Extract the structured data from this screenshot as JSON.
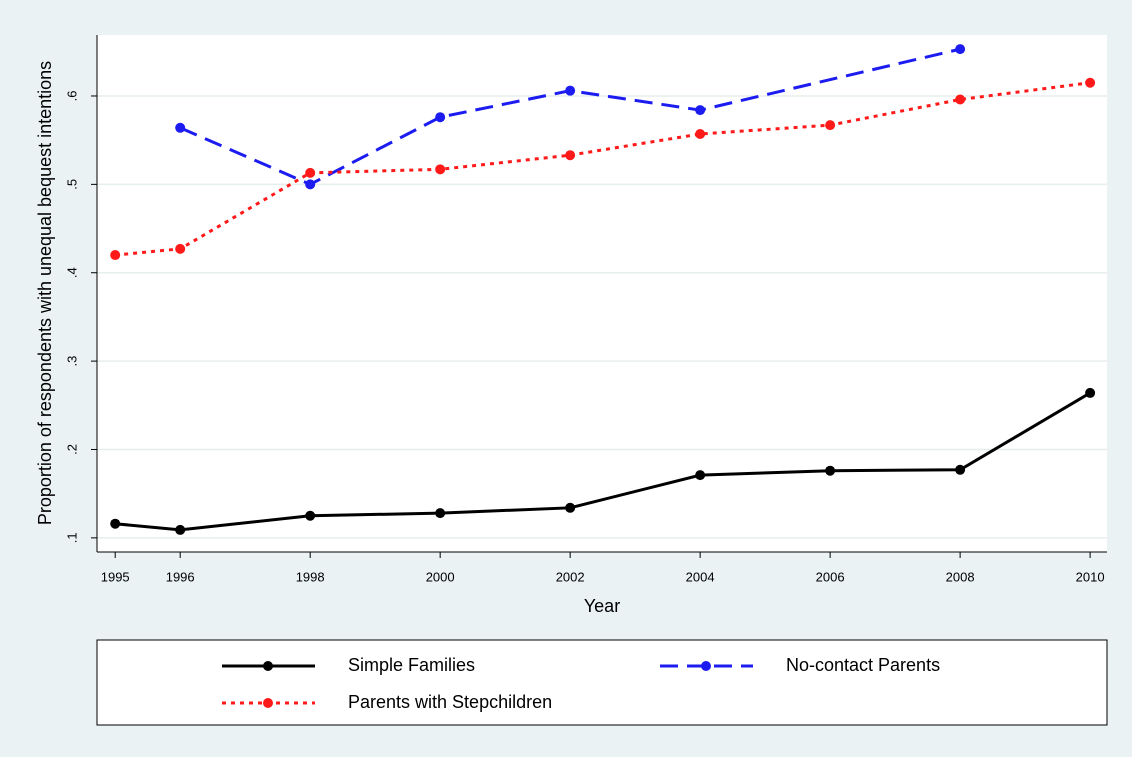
{
  "chart_data": {
    "type": "line",
    "xlabel": "Year",
    "ylabel": "Proportion of respondents with unequal bequest intentions",
    "xlim": [
      1994.72,
      2010.26
    ],
    "xticks": [
      1995,
      1996,
      1998,
      2000,
      2002,
      2004,
      2006,
      2008,
      2010
    ],
    "ylim": [
      0.084,
      0.669
    ],
    "yticks": [
      {
        "value": 0.1,
        "label": ".1"
      },
      {
        "value": 0.2,
        "label": ".2"
      },
      {
        "value": 0.3,
        "label": ".3"
      },
      {
        "value": 0.4,
        "label": ".4"
      },
      {
        "value": 0.5,
        "label": ".5"
      },
      {
        "value": 0.6,
        "label": ".6"
      }
    ],
    "grid": true,
    "legend": "bottom",
    "series": [
      {
        "name": "Simple Families",
        "color": "#000000",
        "dash": "solid",
        "x": [
          1995,
          1996,
          1998,
          2000,
          2002,
          2004,
          2006,
          2008,
          2010
        ],
        "values": [
          0.116,
          0.109,
          0.125,
          0.128,
          0.134,
          0.171,
          0.176,
          0.177,
          0.264
        ]
      },
      {
        "name": "No-contact Parents",
        "color": "#1c1cf0",
        "dash": "dashed",
        "x": [
          1996,
          1998,
          2000,
          2002,
          2004,
          2008
        ],
        "values": [
          0.564,
          0.5,
          0.576,
          0.606,
          0.584,
          0.653
        ]
      },
      {
        "name": "Parents with Stepchildren",
        "color": "#ff1a1a",
        "dash": "dotted",
        "x": [
          1995,
          1996,
          1998,
          2000,
          2002,
          2004,
          2006,
          2008,
          2010
        ],
        "values": [
          0.42,
          0.427,
          0.513,
          0.517,
          0.533,
          0.557,
          0.567,
          0.596,
          0.615
        ]
      }
    ]
  }
}
